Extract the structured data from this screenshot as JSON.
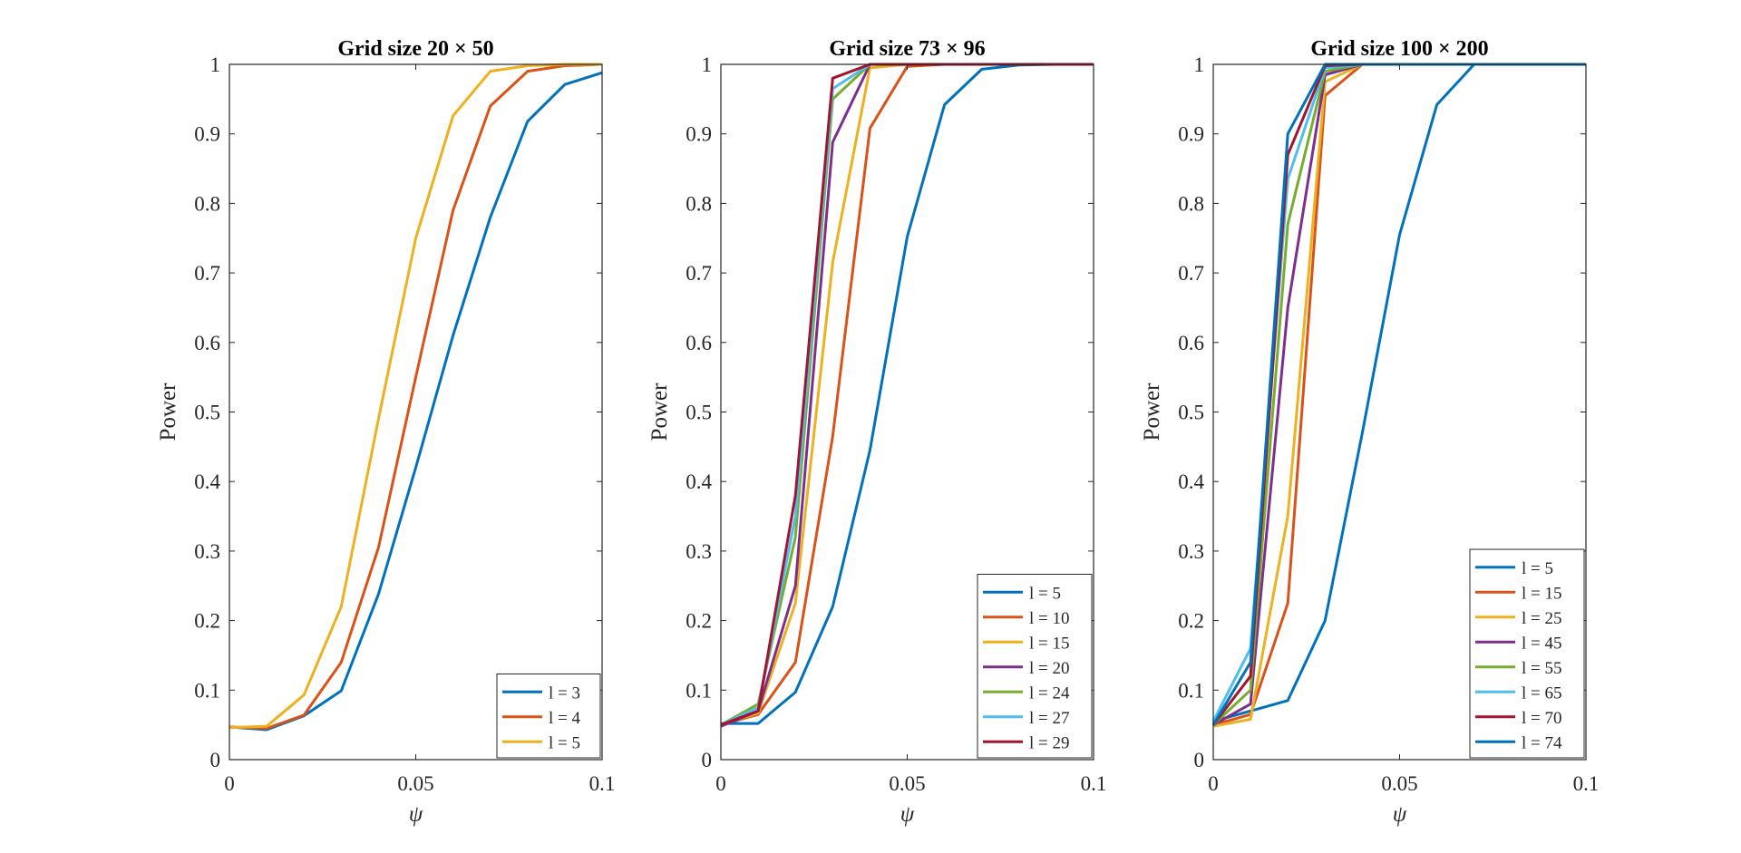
{
  "figure": {
    "ylabel": "Power",
    "xlabel": "ψ"
  },
  "chart_data": [
    {
      "type": "line",
      "title": "Grid size 20 × 50",
      "xlabel": "ψ",
      "ylabel": "Power",
      "xlim": [
        0,
        0.1
      ],
      "ylim": [
        0,
        1
      ],
      "xticks": [
        0,
        0.05,
        0.1
      ],
      "xtick_labels": [
        "0",
        "0.05",
        "0.1"
      ],
      "yticks": [
        0,
        0.1,
        0.2,
        0.3,
        0.4,
        0.5,
        0.6,
        0.7,
        0.8,
        0.9,
        1
      ],
      "ytick_labels": [
        "0",
        "0.1",
        "0.2",
        "0.3",
        "0.4",
        "0.5",
        "0.6",
        "0.7",
        "0.8",
        "0.9",
        "1"
      ],
      "x": [
        0,
        0.01,
        0.02,
        0.03,
        0.04,
        0.05,
        0.06,
        0.07,
        0.08,
        0.09,
        0.1
      ],
      "legend_position": "bottom-right",
      "series": [
        {
          "name": "l = 3",
          "color": "#0072BD",
          "values": [
            0.047,
            0.043,
            0.063,
            0.099,
            0.238,
            0.42,
            0.61,
            0.78,
            0.918,
            0.971,
            0.988
          ]
        },
        {
          "name": "l = 4",
          "color": "#D95319",
          "values": [
            0.047,
            0.045,
            0.064,
            0.14,
            0.305,
            0.55,
            0.79,
            0.94,
            0.99,
            0.998,
            1.0
          ]
        },
        {
          "name": "l = 5",
          "color": "#EDB120",
          "values": [
            0.046,
            0.048,
            0.093,
            0.22,
            0.49,
            0.75,
            0.926,
            0.99,
            0.998,
            1.0,
            1.0
          ]
        }
      ]
    },
    {
      "type": "line",
      "title": "Grid size 73 × 96",
      "xlabel": "ψ",
      "ylabel": "Power",
      "xlim": [
        0,
        0.1
      ],
      "ylim": [
        0,
        1
      ],
      "xticks": [
        0,
        0.05,
        0.1
      ],
      "xtick_labels": [
        "0",
        "0.05",
        "0.1"
      ],
      "yticks": [
        0,
        0.1,
        0.2,
        0.3,
        0.4,
        0.5,
        0.6,
        0.7,
        0.8,
        0.9,
        1
      ],
      "ytick_labels": [
        "0",
        "0.1",
        "0.2",
        "0.3",
        "0.4",
        "0.5",
        "0.6",
        "0.7",
        "0.8",
        "0.9",
        "1"
      ],
      "x": [
        0,
        0.01,
        0.02,
        0.03,
        0.04,
        0.05,
        0.06,
        0.07,
        0.08,
        0.09,
        0.1
      ],
      "legend_position": "bottom-right",
      "series": [
        {
          "name": "l = 5",
          "color": "#0072BD",
          "values": [
            0.052,
            0.052,
            0.097,
            0.22,
            0.445,
            0.752,
            0.942,
            0.993,
            0.999,
            1.0,
            1.0
          ]
        },
        {
          "name": "l = 10",
          "color": "#D95319",
          "values": [
            0.05,
            0.065,
            0.14,
            0.465,
            0.908,
            0.997,
            1.0,
            1.0,
            1.0,
            1.0,
            1.0
          ]
        },
        {
          "name": "l = 15",
          "color": "#EDB120",
          "values": [
            0.05,
            0.067,
            0.225,
            0.715,
            0.995,
            1.0,
            1.0,
            1.0,
            1.0,
            1.0,
            1.0
          ]
        },
        {
          "name": "l = 20",
          "color": "#7E2F8E",
          "values": [
            0.048,
            0.07,
            0.25,
            0.888,
            1.0,
            1.0,
            1.0,
            1.0,
            1.0,
            1.0,
            1.0
          ]
        },
        {
          "name": "l = 24",
          "color": "#77AC30",
          "values": [
            0.05,
            0.08,
            0.32,
            0.95,
            1.0,
            1.0,
            1.0,
            1.0,
            1.0,
            1.0,
            1.0
          ]
        },
        {
          "name": "l = 27",
          "color": "#4DBEEE",
          "values": [
            0.05,
            0.075,
            0.35,
            0.965,
            1.0,
            1.0,
            1.0,
            1.0,
            1.0,
            1.0,
            1.0
          ]
        },
        {
          "name": "l = 29",
          "color": "#A2142F",
          "values": [
            0.05,
            0.07,
            0.38,
            0.98,
            1.0,
            1.0,
            1.0,
            1.0,
            1.0,
            1.0,
            1.0
          ]
        }
      ]
    },
    {
      "type": "line",
      "title": "Grid size 100 × 200",
      "xlabel": "ψ",
      "ylabel": "Power",
      "xlim": [
        0,
        0.1
      ],
      "ylim": [
        0,
        1
      ],
      "xticks": [
        0,
        0.05,
        0.1
      ],
      "xtick_labels": [
        "0",
        "0.05",
        "0.1"
      ],
      "yticks": [
        0,
        0.1,
        0.2,
        0.3,
        0.4,
        0.5,
        0.6,
        0.7,
        0.8,
        0.9,
        1
      ],
      "ytick_labels": [
        "0",
        "0.1",
        "0.2",
        "0.3",
        "0.4",
        "0.5",
        "0.6",
        "0.7",
        "0.8",
        "0.9",
        "1"
      ],
      "x": [
        0,
        0.01,
        0.02,
        0.03,
        0.04,
        0.05,
        0.06,
        0.07,
        0.08,
        0.09,
        0.1
      ],
      "legend_position": "bottom-right",
      "series": [
        {
          "name": "l = 5",
          "color": "#0072BD",
          "values": [
            0.055,
            0.07,
            0.085,
            0.2,
            0.47,
            0.755,
            0.942,
            1.0,
            1.0,
            1.0,
            1.0
          ]
        },
        {
          "name": "l = 15",
          "color": "#D95319",
          "values": [
            0.05,
            0.065,
            0.225,
            0.955,
            1.0,
            1.0,
            1.0,
            1.0,
            1.0,
            1.0,
            1.0
          ]
        },
        {
          "name": "l = 25",
          "color": "#EDB120",
          "values": [
            0.048,
            0.058,
            0.35,
            0.975,
            1.0,
            1.0,
            1.0,
            1.0,
            1.0,
            1.0,
            1.0
          ]
        },
        {
          "name": "l = 45",
          "color": "#7E2F8E",
          "values": [
            0.05,
            0.08,
            0.65,
            0.985,
            1.0,
            1.0,
            1.0,
            1.0,
            1.0,
            1.0,
            1.0
          ]
        },
        {
          "name": "l = 55",
          "color": "#77AC30",
          "values": [
            0.05,
            0.1,
            0.77,
            0.99,
            1.0,
            1.0,
            1.0,
            1.0,
            1.0,
            1.0,
            1.0
          ]
        },
        {
          "name": "l = 65",
          "color": "#4DBEEE",
          "values": [
            0.055,
            0.16,
            0.835,
            0.995,
            1.0,
            1.0,
            1.0,
            1.0,
            1.0,
            1.0,
            1.0
          ]
        },
        {
          "name": "l = 70",
          "color": "#A2142F",
          "values": [
            0.05,
            0.12,
            0.87,
            0.998,
            1.0,
            1.0,
            1.0,
            1.0,
            1.0,
            1.0,
            1.0
          ]
        },
        {
          "name": "l = 74",
          "color": "#0072BD",
          "values": [
            0.05,
            0.14,
            0.9,
            1.0,
            1.0,
            1.0,
            1.0,
            1.0,
            1.0,
            1.0,
            1.0
          ]
        }
      ]
    }
  ]
}
